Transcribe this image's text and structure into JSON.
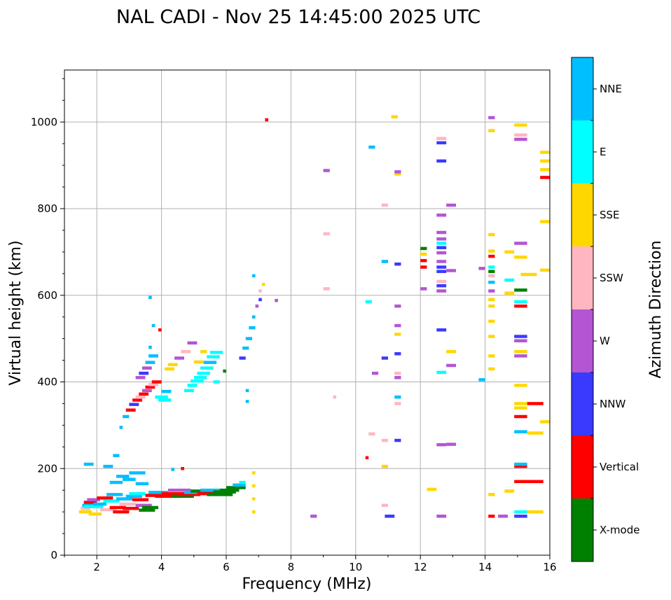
{
  "chart_data": {
    "type": "scatter",
    "title": "NAL CADI - Nov 25 14:45:00 2025 UTC",
    "xlabel": "Frequency (MHz)",
    "ylabel": "Virtual height (km)",
    "xlim": [
      1.0,
      16.0
    ],
    "ylim": [
      0,
      1120
    ],
    "xticks": [
      2,
      4,
      6,
      8,
      10,
      12,
      14,
      16
    ],
    "yticks": [
      0,
      200,
      400,
      600,
      800,
      1000
    ],
    "grid": true,
    "colorbar": {
      "label": "Azimuth Direction",
      "categories": [
        "X-mode",
        "Vertical",
        "NNW",
        "W",
        "SSW",
        "SSE",
        "E",
        "NNE"
      ],
      "colors": {
        "X-mode": "#008000",
        "Vertical": "#ff0000",
        "NNW": "#3a3aff",
        "W": "#b455d4",
        "SSW": "#ffb6c1",
        "SSE": "#ffd700",
        "E": "#00ffff",
        "NNE": "#00bfff"
      }
    },
    "note": "Echo segments given as [frequency_start_MHz, frequency_end_MHz, virtual_height_km, direction]",
    "segments": [
      [
        1.45,
        1.85,
        100,
        "SSE"
      ],
      [
        1.5,
        1.8,
        108,
        "SSW"
      ],
      [
        1.55,
        1.95,
        115,
        "NNE"
      ],
      [
        1.6,
        2.0,
        122,
        "Vertical"
      ],
      [
        1.6,
        2.2,
        112,
        "E"
      ],
      [
        1.7,
        2.1,
        128,
        "W"
      ],
      [
        1.75,
        2.15,
        95,
        "SSE"
      ],
      [
        1.9,
        2.3,
        118,
        "NNE"
      ],
      [
        2.0,
        2.5,
        132,
        "Vertical"
      ],
      [
        2.1,
        2.6,
        105,
        "SSW"
      ],
      [
        2.2,
        2.7,
        125,
        "E"
      ],
      [
        2.3,
        2.8,
        140,
        "NNE"
      ],
      [
        2.4,
        2.9,
        110,
        "Vertical"
      ],
      [
        2.5,
        3.0,
        100,
        "Vertical"
      ],
      [
        2.6,
        3.1,
        130,
        "NNE"
      ],
      [
        2.7,
        3.2,
        118,
        "SSW"
      ],
      [
        2.8,
        3.3,
        108,
        "Vertical"
      ],
      [
        2.9,
        3.4,
        136,
        "NNE"
      ],
      [
        3.0,
        3.5,
        142,
        "E"
      ],
      [
        3.1,
        3.6,
        128,
        "Vertical"
      ],
      [
        3.2,
        3.7,
        115,
        "W"
      ],
      [
        3.3,
        3.8,
        104,
        "X-mode"
      ],
      [
        3.4,
        3.9,
        110,
        "X-mode"
      ],
      [
        3.5,
        4.0,
        138,
        "Vertical"
      ],
      [
        3.6,
        4.2,
        145,
        "NNE"
      ],
      [
        3.8,
        4.5,
        136,
        "Vertical"
      ],
      [
        4.0,
        4.7,
        142,
        "Vertical"
      ],
      [
        4.2,
        4.9,
        150,
        "W"
      ],
      [
        4.3,
        5.0,
        136,
        "X-mode"
      ],
      [
        4.5,
        5.2,
        140,
        "Vertical"
      ],
      [
        4.7,
        5.4,
        145,
        "NNE"
      ],
      [
        4.9,
        5.6,
        148,
        "X-mode"
      ],
      [
        5.1,
        5.8,
        142,
        "Vertical"
      ],
      [
        5.2,
        6.0,
        150,
        "NNE"
      ],
      [
        5.4,
        6.2,
        140,
        "X-mode"
      ],
      [
        5.6,
        6.3,
        146,
        "X-mode"
      ],
      [
        5.8,
        6.4,
        150,
        "X-mode"
      ],
      [
        6.0,
        6.6,
        156,
        "X-mode"
      ],
      [
        6.2,
        6.6,
        162,
        "NNE"
      ],
      [
        6.4,
        6.6,
        168,
        "E"
      ],
      [
        1.6,
        1.9,
        210,
        "NNE"
      ],
      [
        2.2,
        2.5,
        205,
        "NNE"
      ],
      [
        2.4,
        2.8,
        168,
        "NNE"
      ],
      [
        2.6,
        3.0,
        182,
        "NNE"
      ],
      [
        2.8,
        3.2,
        175,
        "NNE"
      ],
      [
        3.0,
        3.5,
        190,
        "NNE"
      ],
      [
        3.2,
        3.6,
        165,
        "NNE"
      ],
      [
        2.5,
        2.7,
        230,
        "NNE"
      ],
      [
        4.6,
        4.7,
        200,
        "Vertical"
      ],
      [
        4.3,
        4.4,
        198,
        "NNE"
      ],
      [
        2.7,
        2.8,
        295,
        "NNE"
      ],
      [
        2.8,
        3.0,
        320,
        "NNE"
      ],
      [
        2.9,
        3.2,
        335,
        "Vertical"
      ],
      [
        3.0,
        3.3,
        348,
        "NNW"
      ],
      [
        3.1,
        3.4,
        358,
        "Vertical"
      ],
      [
        3.2,
        3.5,
        365,
        "SSW"
      ],
      [
        3.3,
        3.6,
        372,
        "Vertical"
      ],
      [
        3.4,
        3.7,
        380,
        "W"
      ],
      [
        3.5,
        3.8,
        388,
        "Vertical"
      ],
      [
        3.6,
        3.9,
        394,
        "SSW"
      ],
      [
        3.7,
        4.0,
        400,
        "Vertical"
      ],
      [
        3.2,
        3.5,
        410,
        "W"
      ],
      [
        3.3,
        3.6,
        420,
        "NNW"
      ],
      [
        3.4,
        3.7,
        432,
        "W"
      ],
      [
        3.5,
        3.8,
        445,
        "NNE"
      ],
      [
        3.6,
        3.9,
        460,
        "NNE"
      ],
      [
        3.6,
        3.7,
        480,
        "NNE"
      ],
      [
        3.7,
        3.8,
        530,
        "NNE"
      ],
      [
        3.6,
        3.7,
        595,
        "NNE"
      ],
      [
        3.9,
        4.0,
        520,
        "Vertical"
      ],
      [
        3.8,
        4.2,
        365,
        "E"
      ],
      [
        3.9,
        4.3,
        358,
        "E"
      ],
      [
        4.0,
        4.3,
        378,
        "NNE"
      ],
      [
        4.1,
        4.4,
        430,
        "SSE"
      ],
      [
        4.2,
        4.5,
        440,
        "SSE"
      ],
      [
        4.4,
        4.7,
        455,
        "W"
      ],
      [
        4.6,
        4.9,
        470,
        "SSW"
      ],
      [
        4.8,
        5.1,
        490,
        "W"
      ],
      [
        4.7,
        5.0,
        380,
        "E"
      ],
      [
        4.8,
        5.1,
        392,
        "E"
      ],
      [
        4.9,
        5.3,
        402,
        "E"
      ],
      [
        5.0,
        5.4,
        410,
        "E"
      ],
      [
        5.1,
        5.5,
        420,
        "E"
      ],
      [
        5.2,
        5.6,
        432,
        "E"
      ],
      [
        5.3,
        5.7,
        445,
        "NNE"
      ],
      [
        5.4,
        5.8,
        458,
        "E"
      ],
      [
        5.5,
        5.9,
        468,
        "E"
      ],
      [
        5.0,
        5.3,
        446,
        "SSE"
      ],
      [
        5.2,
        5.4,
        470,
        "SSE"
      ],
      [
        5.6,
        5.8,
        400,
        "E"
      ],
      [
        5.9,
        6.0,
        425,
        "X-mode"
      ],
      [
        6.4,
        6.6,
        455,
        "NNW"
      ],
      [
        6.5,
        6.7,
        478,
        "NNE"
      ],
      [
        6.6,
        6.8,
        500,
        "NNE"
      ],
      [
        6.7,
        6.9,
        525,
        "NNE"
      ],
      [
        6.6,
        6.7,
        380,
        "NNE"
      ],
      [
        6.6,
        6.7,
        355,
        "NNE"
      ],
      [
        6.8,
        6.9,
        550,
        "NNE"
      ],
      [
        6.9,
        7.0,
        575,
        "W"
      ],
      [
        7.0,
        7.1,
        590,
        "NNW"
      ],
      [
        7.0,
        7.1,
        610,
        "SSW"
      ],
      [
        6.8,
        6.9,
        645,
        "NNE"
      ],
      [
        7.1,
        7.2,
        625,
        "SSE"
      ],
      [
        7.5,
        7.6,
        588,
        "W"
      ],
      [
        7.2,
        7.3,
        1005,
        "Vertical"
      ],
      [
        6.8,
        6.9,
        100,
        "SSE"
      ],
      [
        6.8,
        6.9,
        130,
        "SSE"
      ],
      [
        6.8,
        6.9,
        160,
        "SSE"
      ],
      [
        6.8,
        6.9,
        190,
        "SSE"
      ],
      [
        8.6,
        8.8,
        90,
        "W"
      ],
      [
        9.0,
        9.2,
        888,
        "W"
      ],
      [
        9.0,
        9.2,
        742,
        "SSW"
      ],
      [
        9.0,
        9.2,
        615,
        "SSW"
      ],
      [
        9.3,
        9.4,
        365,
        "SSW"
      ],
      [
        10.3,
        10.4,
        225,
        "Vertical"
      ],
      [
        10.4,
        10.6,
        280,
        "SSW"
      ],
      [
        10.5,
        10.7,
        420,
        "W"
      ],
      [
        10.8,
        11.0,
        265,
        "SSW"
      ],
      [
        10.8,
        11.0,
        205,
        "SSE"
      ],
      [
        10.8,
        11.0,
        115,
        "SSW"
      ],
      [
        10.9,
        11.2,
        90,
        "NNW"
      ],
      [
        10.8,
        11.0,
        455,
        "NNW"
      ],
      [
        10.8,
        11.0,
        678,
        "NNE"
      ],
      [
        10.4,
        10.6,
        942,
        "NNE"
      ],
      [
        10.8,
        11.0,
        808,
        "SSW"
      ],
      [
        11.1,
        11.3,
        1012,
        "SSE"
      ],
      [
        10.3,
        10.5,
        585,
        "E"
      ],
      [
        11.2,
        11.4,
        575,
        "W"
      ],
      [
        11.2,
        11.4,
        530,
        "W"
      ],
      [
        11.2,
        11.4,
        510,
        "SSE"
      ],
      [
        11.2,
        11.4,
        465,
        "NNW"
      ],
      [
        11.2,
        11.4,
        420,
        "SSW"
      ],
      [
        11.2,
        11.4,
        410,
        "W"
      ],
      [
        11.2,
        11.4,
        365,
        "NNE"
      ],
      [
        11.2,
        11.4,
        350,
        "SSW"
      ],
      [
        11.2,
        11.4,
        265,
        "NNW"
      ],
      [
        11.2,
        11.4,
        672,
        "NNW"
      ],
      [
        11.2,
        11.4,
        880,
        "SSE"
      ],
      [
        11.2,
        11.4,
        885,
        "W"
      ],
      [
        12.0,
        12.2,
        708,
        "X-mode"
      ],
      [
        12.0,
        12.2,
        695,
        "SSE"
      ],
      [
        12.0,
        12.2,
        680,
        "Vertical"
      ],
      [
        12.0,
        12.2,
        665,
        "Vertical"
      ],
      [
        12.0,
        12.2,
        615,
        "W"
      ],
      [
        12.2,
        12.5,
        152,
        "SSE"
      ],
      [
        12.5,
        12.8,
        90,
        "W"
      ],
      [
        12.5,
        12.8,
        255,
        "W"
      ],
      [
        12.5,
        12.8,
        422,
        "E"
      ],
      [
        12.5,
        12.8,
        520,
        "NNW"
      ],
      [
        12.5,
        12.8,
        610,
        "W"
      ],
      [
        12.5,
        12.8,
        622,
        "NNW"
      ],
      [
        12.5,
        12.8,
        632,
        "SSW"
      ],
      [
        12.5,
        12.8,
        655,
        "NNW"
      ],
      [
        12.5,
        12.8,
        665,
        "NNW"
      ],
      [
        12.5,
        12.8,
        678,
        "W"
      ],
      [
        12.5,
        12.8,
        698,
        "W"
      ],
      [
        12.5,
        12.8,
        710,
        "NNW"
      ],
      [
        12.5,
        12.8,
        720,
        "E"
      ],
      [
        12.5,
        12.8,
        730,
        "W"
      ],
      [
        12.5,
        12.8,
        745,
        "W"
      ],
      [
        12.5,
        12.8,
        785,
        "W"
      ],
      [
        12.5,
        12.8,
        910,
        "NNW"
      ],
      [
        12.5,
        12.8,
        952,
        "NNW"
      ],
      [
        12.5,
        12.8,
        962,
        "SSW"
      ],
      [
        12.8,
        13.1,
        256,
        "W"
      ],
      [
        12.8,
        13.1,
        438,
        "W"
      ],
      [
        12.8,
        13.1,
        470,
        "SSE"
      ],
      [
        12.8,
        13.1,
        657,
        "W"
      ],
      [
        12.8,
        13.1,
        808,
        "W"
      ],
      [
        13.8,
        14.0,
        405,
        "NNE"
      ],
      [
        13.8,
        14.0,
        662,
        "W"
      ],
      [
        14.1,
        14.3,
        90,
        "Vertical"
      ],
      [
        14.1,
        14.3,
        140,
        "SSE"
      ],
      [
        14.1,
        14.3,
        430,
        "SSE"
      ],
      [
        14.1,
        14.3,
        460,
        "SSE"
      ],
      [
        14.1,
        14.3,
        505,
        "SSE"
      ],
      [
        14.1,
        14.3,
        540,
        "SSE"
      ],
      [
        14.1,
        14.3,
        575,
        "SSE"
      ],
      [
        14.1,
        14.3,
        590,
        "SSE"
      ],
      [
        14.1,
        14.3,
        610,
        "W"
      ],
      [
        14.1,
        14.3,
        630,
        "NNE"
      ],
      [
        14.1,
        14.3,
        645,
        "SSW"
      ],
      [
        14.1,
        14.3,
        655,
        "X-mode"
      ],
      [
        14.1,
        14.3,
        665,
        "E"
      ],
      [
        14.1,
        14.3,
        690,
        "Vertical"
      ],
      [
        14.1,
        14.3,
        702,
        "SSE"
      ],
      [
        14.1,
        14.3,
        740,
        "SSE"
      ],
      [
        14.1,
        14.3,
        980,
        "SSE"
      ],
      [
        14.1,
        14.3,
        1010,
        "W"
      ],
      [
        14.4,
        14.7,
        90,
        "W"
      ],
      [
        14.6,
        14.9,
        148,
        "SSE"
      ],
      [
        14.6,
        14.9,
        605,
        "SSE"
      ],
      [
        14.6,
        14.9,
        635,
        "E"
      ],
      [
        14.6,
        14.9,
        700,
        "SSE"
      ],
      [
        14.9,
        15.3,
        90,
        "NNW"
      ],
      [
        14.9,
        15.3,
        100,
        "E"
      ],
      [
        14.9,
        15.8,
        170,
        "Vertical"
      ],
      [
        14.9,
        15.3,
        205,
        "Vertical"
      ],
      [
        14.9,
        15.3,
        210,
        "NNE"
      ],
      [
        14.9,
        15.3,
        285,
        "NNE"
      ],
      [
        14.9,
        15.3,
        320,
        "Vertical"
      ],
      [
        14.9,
        15.3,
        340,
        "SSE"
      ],
      [
        14.9,
        15.3,
        350,
        "SSE"
      ],
      [
        14.9,
        15.3,
        392,
        "SSE"
      ],
      [
        14.9,
        15.3,
        460,
        "W"
      ],
      [
        14.9,
        15.3,
        470,
        "SSE"
      ],
      [
        14.9,
        15.3,
        495,
        "W"
      ],
      [
        14.9,
        15.3,
        505,
        "NNW"
      ],
      [
        14.9,
        15.3,
        575,
        "Vertical"
      ],
      [
        14.9,
        15.3,
        585,
        "E"
      ],
      [
        14.9,
        15.3,
        612,
        "X-mode"
      ],
      [
        14.9,
        15.3,
        688,
        "SSE"
      ],
      [
        14.9,
        15.3,
        720,
        "W"
      ],
      [
        14.9,
        15.3,
        960,
        "W"
      ],
      [
        14.9,
        15.3,
        970,
        "SSW"
      ],
      [
        14.9,
        15.3,
        993,
        "SSE"
      ],
      [
        15.3,
        15.8,
        100,
        "SSE"
      ],
      [
        15.3,
        15.8,
        282,
        "SSE"
      ],
      [
        15.3,
        15.8,
        350,
        "Vertical"
      ],
      [
        15.1,
        15.6,
        648,
        "SSE"
      ],
      [
        15.7,
        16.0,
        308,
        "SSE"
      ],
      [
        15.7,
        16.0,
        658,
        "SSE"
      ],
      [
        15.7,
        16.0,
        770,
        "SSE"
      ],
      [
        15.7,
        16.0,
        872,
        "Vertical"
      ],
      [
        15.7,
        16.0,
        890,
        "SSE"
      ],
      [
        15.7,
        16.0,
        910,
        "SSE"
      ],
      [
        15.7,
        16.0,
        930,
        "SSE"
      ]
    ]
  }
}
